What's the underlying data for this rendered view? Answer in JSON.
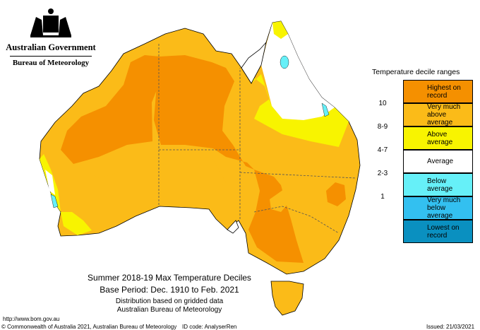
{
  "branding": {
    "org_line1": "Australian Government",
    "org_line2": "Bureau of Meteorology",
    "crest_icon": "coat-of-arms-icon"
  },
  "legend": {
    "title": "Temperature decile ranges",
    "items": [
      {
        "range": "",
        "label": "Highest on record",
        "color": "#f59000"
      },
      {
        "range": "10",
        "label": "Very much above average",
        "color": "#fbbb18"
      },
      {
        "range": "8-9",
        "label": "Above average",
        "color": "#f8f400"
      },
      {
        "range": "4-7",
        "label": "Average",
        "color": "#ffffff"
      },
      {
        "range": "2-3",
        "label": "Below average",
        "color": "#66f0f8"
      },
      {
        "range": "1",
        "label": "Very much below average",
        "color": "#33c0f0"
      },
      {
        "range": "",
        "label": "Lowest on record",
        "color": "#0a90c0"
      }
    ]
  },
  "caption": {
    "line1": "Summer 2018-19 Max Temperature Deciles",
    "line2": "Base Period: Dec. 1910 to Feb. 2021",
    "line3": "Distribution based on gridded data",
    "line4": "Australian Bureau of Meteorology"
  },
  "footer": {
    "url": "http://www.bom.gov.au",
    "copyright": "© Commonwealth of Australia 2021, Australian Bureau of Meteorology",
    "id_code": "ID code: AnalyserRen",
    "issued": "Issued: 21/03/2021"
  }
}
